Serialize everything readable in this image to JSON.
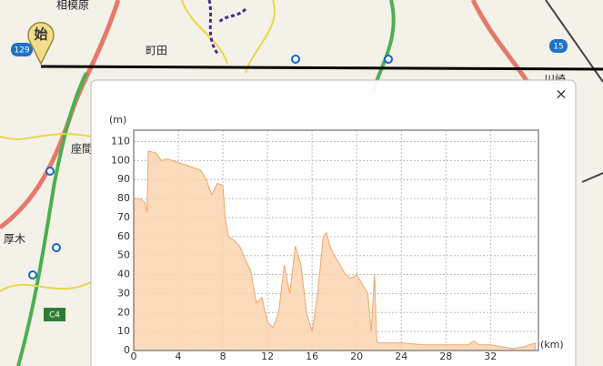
{
  "map": {
    "labels": [
      "相模原",
      "町田",
      "座間",
      "厚木",
      "川崎",
      "129",
      "15",
      "C4"
    ]
  },
  "start_marker": "始",
  "popup": {
    "close": "×"
  },
  "chart_data": {
    "type": "area",
    "x_label": "(km)",
    "y_label": "(m)",
    "x": [
      0,
      0.5,
      1,
      1.2,
      1.3,
      2,
      2.5,
      3,
      4,
      5,
      6,
      6.5,
      7,
      7.5,
      8,
      8.2,
      8.5,
      9,
      9.5,
      10,
      10.5,
      11,
      11.5,
      12,
      12.5,
      13,
      13.5,
      14,
      14.5,
      15,
      15.5,
      16,
      16.5,
      17,
      17.3,
      17.6,
      18,
      18.5,
      19,
      19.5,
      20,
      20.5,
      21,
      21.3,
      21.6,
      21.8,
      22,
      24,
      26,
      28,
      30,
      30.5,
      31,
      32,
      33,
      34,
      35,
      36
    ],
    "y": [
      80,
      80,
      78,
      73,
      105,
      104,
      100,
      101,
      99,
      97,
      95,
      90,
      82,
      88,
      87,
      70,
      60,
      58,
      55,
      48,
      42,
      25,
      28,
      15,
      12,
      20,
      45,
      30,
      55,
      45,
      20,
      10,
      30,
      60,
      62,
      55,
      50,
      45,
      40,
      38,
      40,
      35,
      30,
      10,
      40,
      5,
      4,
      4,
      3,
      3,
      3,
      5,
      3,
      3,
      2,
      1,
      2,
      4
    ],
    "color": "#fbd3b0",
    "line_color": "#f2a66a",
    "xlim": [
      0,
      36.3
    ],
    "ylim": [
      0,
      116
    ],
    "xticks": [
      0,
      4,
      8,
      12,
      16,
      20,
      24,
      28,
      32
    ],
    "yticks": [
      0,
      10,
      20,
      30,
      40,
      50,
      60,
      70,
      80,
      90,
      100,
      110
    ],
    "grid": true
  }
}
